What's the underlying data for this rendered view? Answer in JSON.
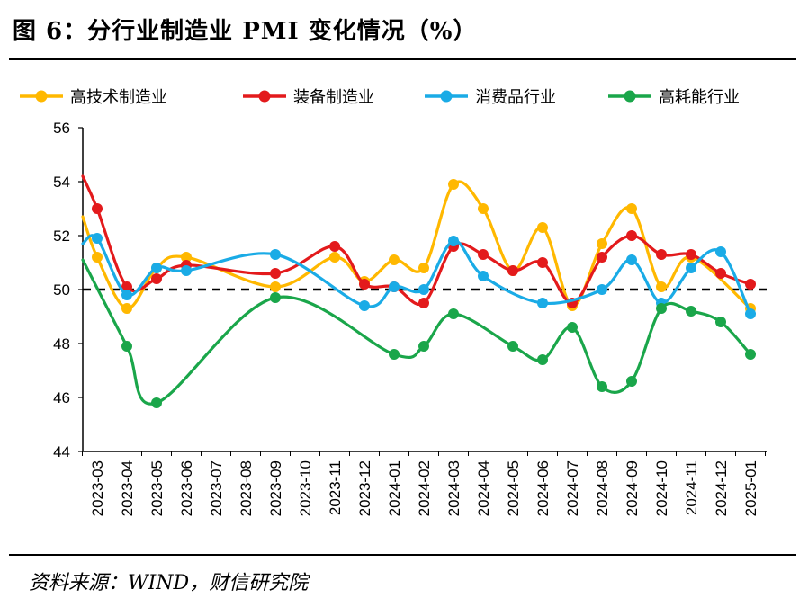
{
  "title": "图 6：分行业制造业 PMI 变化情况（%）",
  "source": "资料来源：WIND，财信研究院",
  "chart_data": {
    "type": "line",
    "categories": [
      "2023-03",
      "2023-04",
      "2023-05",
      "2023-06",
      "2023-07",
      "2023-08",
      "2023-09",
      "2023-10",
      "2023-11",
      "2023-12",
      "2024-01",
      "2024-02",
      "2024-03",
      "2024-04",
      "2024-05",
      "2024-06",
      "2024-07",
      "2024-08",
      "2024-09",
      "2024-10",
      "2024-11",
      "2024-12",
      "2025-01"
    ],
    "ylim": [
      44,
      56
    ],
    "yticks": [
      "44",
      "46",
      "48",
      "50",
      "52",
      "54",
      "56"
    ],
    "reference_line": 50,
    "legend_position": "top",
    "series": [
      {
        "name": "高技术制造业",
        "color": "#FFB800",
        "values": [
          51.2,
          49.3,
          50.8,
          51.2,
          null,
          null,
          50.1,
          null,
          51.2,
          50.3,
          51.1,
          50.8,
          53.9,
          53.0,
          50.7,
          52.3,
          49.4,
          51.7,
          53.0,
          50.1,
          51.2,
          null,
          49.3
        ]
      },
      {
        "name": "装备制造业",
        "color": "#E31A1C",
        "values": [
          53.0,
          50.1,
          50.4,
          50.9,
          null,
          null,
          50.6,
          null,
          51.6,
          50.2,
          50.1,
          49.5,
          51.6,
          51.3,
          50.7,
          51.0,
          49.5,
          51.2,
          52.0,
          51.3,
          51.3,
          50.6,
          50.2
        ]
      },
      {
        "name": "消费品行业",
        "color": "#1AABE6",
        "values": [
          51.9,
          49.8,
          50.8,
          50.7,
          null,
          null,
          51.3,
          null,
          null,
          49.4,
          50.1,
          50.0,
          51.8,
          50.5,
          null,
          49.5,
          null,
          50.0,
          51.1,
          49.5,
          50.8,
          51.4,
          49.1
        ]
      },
      {
        "name": "高耗能行业",
        "color": "#1AA64A",
        "values": [
          null,
          47.9,
          45.8,
          null,
          null,
          null,
          49.7,
          null,
          null,
          null,
          47.6,
          47.9,
          49.1,
          null,
          47.9,
          47.4,
          48.6,
          46.4,
          46.6,
          49.3,
          49.2,
          48.8,
          47.6
        ]
      }
    ],
    "curve_start": [
      52.7,
      54.2,
      51.7,
      51.1
    ]
  }
}
